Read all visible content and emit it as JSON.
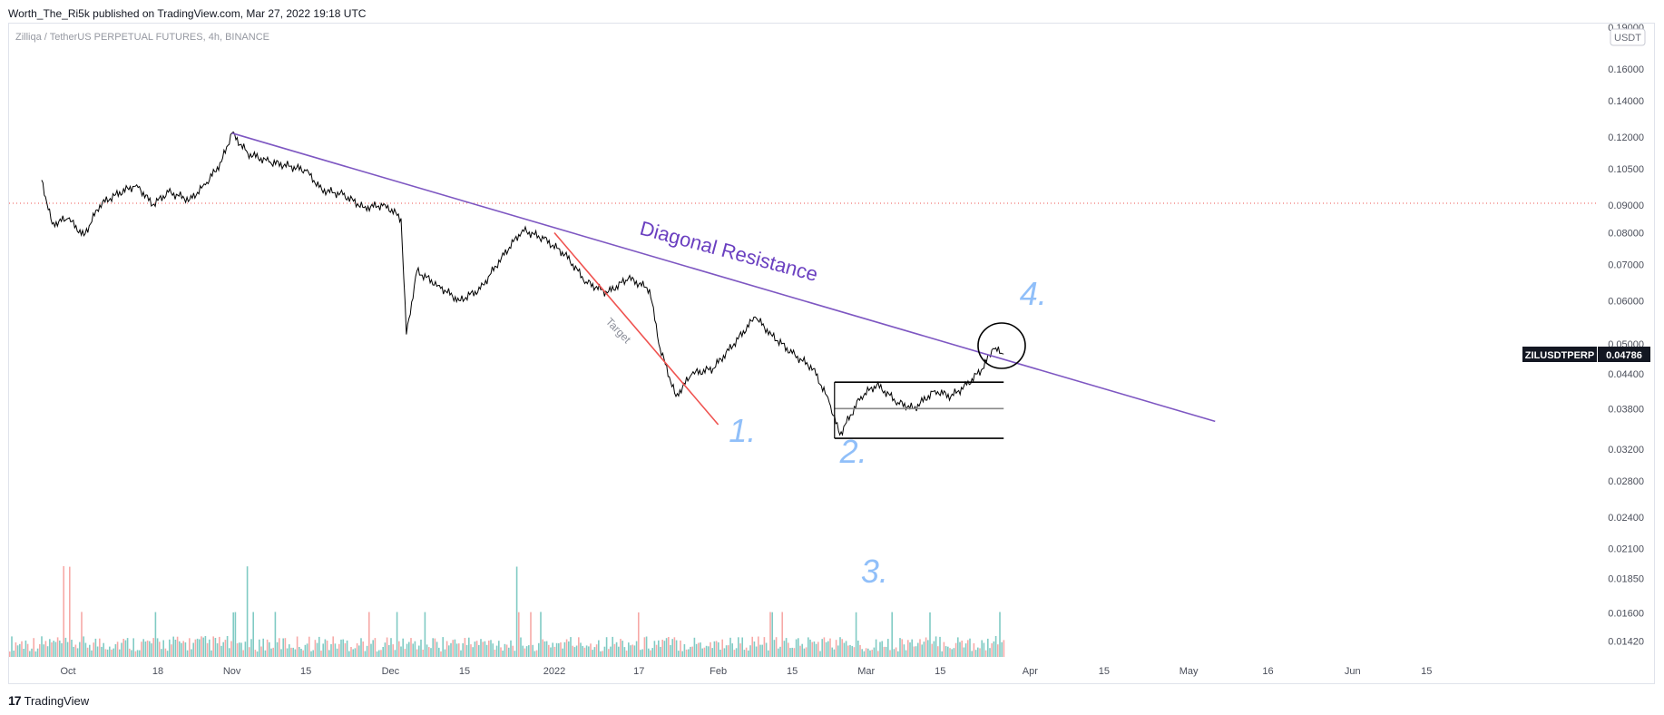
{
  "header": {
    "published_text": "Worth_The_Ri5k published on TradingView.com, Mar 27, 2022 19:18 UTC"
  },
  "symbol_line": "Zilliqa / TetherUS PERPETUAL FUTURES, 4h, BINANCE",
  "footer": {
    "logo_glyph": "17",
    "brand": "TradingView"
  },
  "colors": {
    "trendline": "#7e57c2",
    "target": "#ef5350",
    "annotation": "#90bff9",
    "up_volume": "#80cbc4",
    "down_volume": "#f7a9a7",
    "dotted_level": "#ef5350"
  },
  "chart_data": {
    "type": "line",
    "title": "",
    "price_axis": {
      "unit_label": "USDT",
      "scale": "log",
      "ticks": [
        "0.19000",
        "0.16000",
        "0.14000",
        "0.12000",
        "0.10500",
        "0.09000",
        "0.08000",
        "0.07000",
        "0.06000",
        "0.05000",
        "0.04400",
        "0.03800",
        "0.03200",
        "0.02800",
        "0.02400",
        "0.02100",
        "0.01850",
        "0.01600",
        "0.01420"
      ]
    },
    "time_axis": {
      "ticks": [
        "Oct",
        "18",
        "Nov",
        "15",
        "Dec",
        "15",
        "2022",
        "17",
        "Feb",
        "15",
        "Mar",
        "15",
        "Apr",
        "15",
        "May",
        "16",
        "Jun",
        "15"
      ]
    },
    "series": [
      {
        "points": [
          [
            "2021-09-26",
            0.1
          ],
          [
            "2021-09-28",
            0.083
          ],
          [
            "2021-10-01",
            0.085
          ],
          [
            "2021-10-04",
            0.079
          ],
          [
            "2021-10-07",
            0.09
          ],
          [
            "2021-10-10",
            0.094
          ],
          [
            "2021-10-14",
            0.098
          ],
          [
            "2021-10-17",
            0.09
          ],
          [
            "2021-10-20",
            0.095
          ],
          [
            "2021-10-24",
            0.092
          ],
          [
            "2021-10-27",
            0.098
          ],
          [
            "2021-10-30",
            0.108
          ],
          [
            "2021-11-01",
            0.122
          ],
          [
            "2021-11-04",
            0.112
          ],
          [
            "2021-11-08",
            0.108
          ],
          [
            "2021-11-12",
            0.106
          ],
          [
            "2021-11-15",
            0.104
          ],
          [
            "2021-11-18",
            0.096
          ],
          [
            "2021-11-22",
            0.094
          ],
          [
            "2021-11-26",
            0.089
          ],
          [
            "2021-11-30",
            0.09
          ],
          [
            "2021-12-03",
            0.085
          ],
          [
            "2021-12-04",
            0.052
          ],
          [
            "2021-12-06",
            0.068
          ],
          [
            "2021-12-10",
            0.064
          ],
          [
            "2021-12-14",
            0.06
          ],
          [
            "2021-12-18",
            0.063
          ],
          [
            "2021-12-22",
            0.072
          ],
          [
            "2021-12-26",
            0.081
          ],
          [
            "2021-12-30",
            0.078
          ],
          [
            "2022-01-03",
            0.073
          ],
          [
            "2022-01-07",
            0.065
          ],
          [
            "2022-01-11",
            0.062
          ],
          [
            "2022-01-15",
            0.066
          ],
          [
            "2022-01-19",
            0.063
          ],
          [
            "2022-01-21",
            0.049
          ],
          [
            "2022-01-24",
            0.04
          ],
          [
            "2022-01-27",
            0.044
          ],
          [
            "2022-01-31",
            0.045
          ],
          [
            "2022-02-04",
            0.05
          ],
          [
            "2022-02-08",
            0.056
          ],
          [
            "2022-02-11",
            0.052
          ],
          [
            "2022-02-15",
            0.048
          ],
          [
            "2022-02-19",
            0.045
          ],
          [
            "2022-02-22",
            0.039
          ],
          [
            "2022-02-24",
            0.034
          ],
          [
            "2022-02-28",
            0.04
          ],
          [
            "2022-03-03",
            0.042
          ],
          [
            "2022-03-07",
            0.039
          ],
          [
            "2022-03-10",
            0.038
          ],
          [
            "2022-03-14",
            0.041
          ],
          [
            "2022-03-17",
            0.04
          ],
          [
            "2022-03-20",
            0.042
          ],
          [
            "2022-03-23",
            0.045
          ],
          [
            "2022-03-25",
            0.049
          ],
          [
            "2022-03-27",
            0.04786
          ]
        ]
      }
    ],
    "last_price": {
      "symbol": "ZILUSDTPERP",
      "value": "0.04786"
    },
    "dotted_level": 0.09,
    "annotations": {
      "diagonal_resistance": {
        "label": "Diagonal Resistance",
        "from": [
          "2021-11-01",
          0.122
        ],
        "to": [
          "2022-05-06",
          0.036
        ]
      },
      "target": {
        "label": "Target",
        "from": [
          "2022-01-01",
          0.08
        ],
        "to": [
          "2022-02-01",
          0.0355
        ]
      },
      "range_box": {
        "from": "2022-02-23",
        "to": "2022-03-27",
        "levels": [
          0.0425,
          0.038,
          0.0335
        ]
      },
      "markers": [
        {
          "label": "1.",
          "at": [
            "2022-02-03",
            0.033
          ]
        },
        {
          "label": "2.",
          "at": [
            "2022-02-24",
            0.0302
          ]
        },
        {
          "label": "3.",
          "at": [
            "2022-02-28",
            0.0182
          ]
        },
        {
          "label": "4.",
          "at": [
            "2022-03-30",
            0.059
          ]
        }
      ],
      "circle_center": [
        "2022-03-26",
        0.0485
      ]
    }
  }
}
